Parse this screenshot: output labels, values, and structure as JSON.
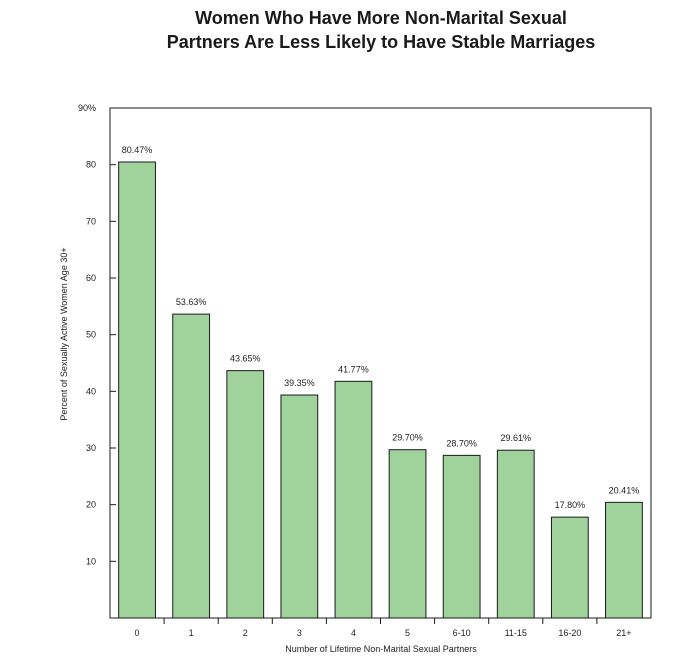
{
  "chart_data": {
    "type": "bar",
    "title_lines": [
      "Women Who Have More Non-Marital Sexual",
      "Partners Are Less Likely to Have Stable Marriages"
    ],
    "xlabel": "Number of Lifetime Non-Marital Sexual Partners",
    "ylabel": "Percent of Sexually Active Women Age 30+",
    "categories": [
      "0",
      "1",
      "2",
      "3",
      "4",
      "5",
      "6-10",
      "11-15",
      "16-20",
      "21+"
    ],
    "values": [
      80.47,
      53.63,
      43.65,
      39.35,
      41.77,
      29.7,
      28.7,
      29.61,
      17.8,
      20.41
    ],
    "value_labels": [
      "80.47%",
      "53.63%",
      "43.65%",
      "39.35%",
      "41.77%",
      "29.70%",
      "28.70%",
      "29.61%",
      "17.80%",
      "20.41%"
    ],
    "ylim": [
      0,
      90
    ],
    "yticks": [
      10,
      20,
      30,
      40,
      50,
      60,
      70,
      80,
      90
    ],
    "ytick_labels": [
      "10",
      "20",
      "30",
      "40",
      "50",
      "60",
      "70",
      "80",
      "90%"
    ],
    "grid": false,
    "legend": "none",
    "colors": {
      "bar_fill": "#9fd39b",
      "bar_stroke": "#1a1a1a",
      "axis": "#1a1a1a"
    }
  }
}
